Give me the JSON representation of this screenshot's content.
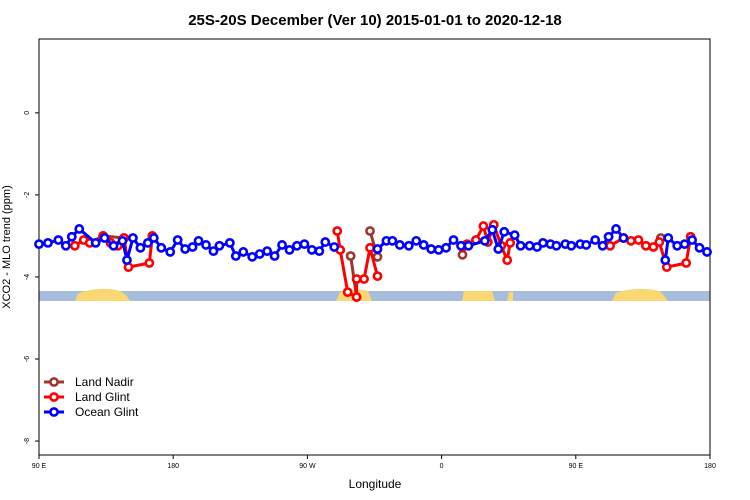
{
  "chart_data": {
    "type": "line",
    "title": "25S-20S December (Ver 10)   2015-01-01 to 2020-12-18",
    "xlabel": "Longitude",
    "ylabel": "XCO2 - MLO trend (ppm)",
    "xlim": [
      90,
      540
    ],
    "ylim": [
      -8.34,
      1.8
    ],
    "xticks": [
      {
        "value": 90,
        "label": "90 E"
      },
      180,
      {
        "value": 270,
        "label": "90 W"
      },
      {
        "value": 360,
        "label": "0"
      },
      {
        "value": 450,
        "label": "90 E"
      },
      {
        "value": 540,
        "label": "180"
      }
    ],
    "yticks": [
      -8,
      -6,
      -4,
      -2,
      0
    ],
    "legend": "bottom-left",
    "series": [
      {
        "name": "Land Nadir",
        "color": "#a0352f",
        "x": [
          133,
          147,
          null,
          299,
          303,
          null,
          312,
          317,
          null,
          374,
          null,
          507
        ],
        "values": [
          -3.0,
          -3.05,
          null,
          -3.49,
          -4.49,
          null,
          -2.88,
          -3.51,
          null,
          -3.46,
          null,
          -3.05
        ]
      },
      {
        "name": "Land Glint",
        "color": "#ff0000",
        "x": [
          114,
          120,
          124,
          133,
          138,
          143,
          147,
          150,
          164,
          166,
          null,
          290,
          292,
          297,
          303,
          303,
          308,
          312,
          317,
          null,
          374,
          377,
          383,
          388,
          391,
          395,
          400,
          404,
          406,
          null,
          473,
          482,
          487,
          492,
          497,
          502,
          506,
          511,
          524,
          527
        ],
        "values": [
          -3.24,
          -3.1,
          -3.17,
          -3.0,
          -3.17,
          -3.24,
          -3.05,
          -3.76,
          -3.66,
          -3.0,
          null,
          -2.88,
          -3.34,
          -4.37,
          -4.49,
          -4.05,
          -4.05,
          -3.29,
          -3.98,
          null,
          -3.27,
          -3.2,
          -3.1,
          -2.76,
          -3.15,
          -2.73,
          -3.24,
          -3.59,
          -3.17,
          null,
          -3.24,
          -3.05,
          -3.12,
          -3.1,
          -3.24,
          -3.27,
          -3.15,
          -3.76,
          -3.66,
          -3.02
        ]
      },
      {
        "name": "Ocean Glint",
        "color": "#0000ff",
        "x": [
          90,
          96,
          103,
          108,
          112,
          117,
          128,
          134,
          140,
          146,
          149,
          153,
          158,
          163,
          167,
          172,
          178,
          183,
          188,
          193,
          197,
          202,
          207,
          211,
          218,
          222,
          227,
          233,
          238,
          243,
          248,
          253,
          258,
          263,
          268,
          273,
          278,
          282,
          288,
          null,
          317,
          323,
          327,
          332,
          338,
          343,
          348,
          353,
          358,
          363,
          368,
          373,
          378,
          389,
          394,
          398,
          402,
          409,
          413,
          419,
          424,
          428,
          433,
          437,
          443,
          447,
          453,
          457,
          463,
          468,
          472,
          477,
          482,
          null,
          510,
          512,
          518,
          523,
          528,
          533,
          538
        ],
        "values": [
          -3.2,
          -3.17,
          -3.1,
          -3.24,
          -3.02,
          -2.83,
          -3.17,
          -3.05,
          -3.24,
          -3.12,
          -3.59,
          -3.05,
          -3.29,
          -3.17,
          -3.05,
          -3.29,
          -3.39,
          -3.1,
          -3.32,
          -3.27,
          -3.12,
          -3.22,
          -3.37,
          -3.24,
          -3.17,
          -3.49,
          -3.39,
          -3.51,
          -3.44,
          -3.37,
          -3.49,
          -3.22,
          -3.34,
          -3.24,
          -3.2,
          -3.34,
          -3.37,
          -3.15,
          -3.27,
          null,
          -3.32,
          -3.12,
          -3.12,
          -3.22,
          -3.24,
          -3.12,
          -3.22,
          -3.32,
          -3.34,
          -3.29,
          -3.1,
          -3.24,
          -3.24,
          -3.12,
          -2.85,
          -3.32,
          -2.9,
          -2.98,
          -3.24,
          -3.24,
          -3.27,
          -3.17,
          -3.2,
          -3.24,
          -3.2,
          -3.24,
          -3.2,
          -3.22,
          -3.1,
          -3.24,
          -3.02,
          -2.83,
          -3.05,
          null,
          -3.59,
          -3.05,
          -3.24,
          -3.2,
          -3.1,
          -3.29,
          -3.39
        ]
      }
    ]
  }
}
